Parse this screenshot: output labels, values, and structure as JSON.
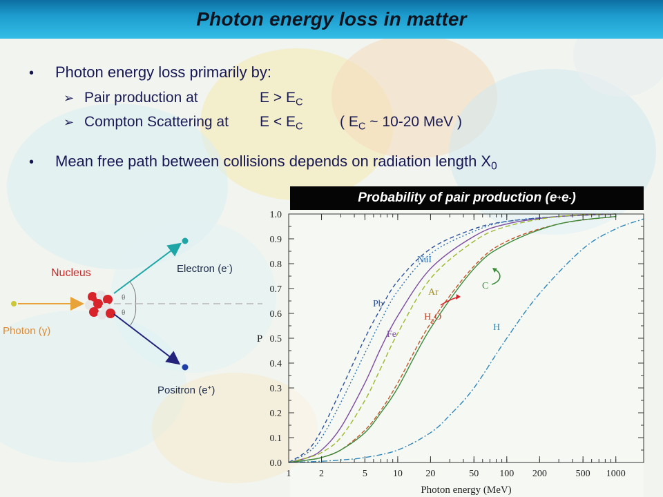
{
  "slide": {
    "title": "Photon energy loss in matter"
  },
  "bullets": {
    "b1": "Photon energy loss primarily by:",
    "s1_text": "Pair production at",
    "s1_cond_pre": "E > E",
    "s1_cond_sub": "C",
    "s2_text": "Compton Scattering at",
    "s2_cond_pre": "E < E",
    "s2_cond_sub": "C",
    "s2_note_pre": "( E",
    "s2_note_sub": "C",
    "s2_note_post": " ~ 10-20 MeV )",
    "b2_pre": "Mean free path between collisions depends on radiation length X",
    "b2_sub": "0"
  },
  "diagram": {
    "nucleus": "Nucleus",
    "photon": "Photon (γ)",
    "electron_pre": "Electron (e",
    "electron_sup": "-",
    "electron_post": ")",
    "positron_pre": "Positron (e",
    "positron_sup": "+",
    "positron_post": ")",
    "theta": "θ"
  },
  "colors": {
    "photon": "#e8a23a",
    "electron": "#1ea6a6",
    "positron": "#22227a",
    "title_gradient_top": "#0d6ea2",
    "bullet_text": "#161654"
  },
  "chart_data": {
    "type": "line",
    "title_pre": "Probability of pair production (e",
    "title_sup1": "+",
    "title_mid": "e",
    "title_sup2": "-",
    "title_post": ")",
    "xlabel": "Photon energy (MeV)",
    "ylabel": "P",
    "xscale": "log",
    "xlim": [
      1,
      1800
    ],
    "ylim": [
      0,
      1
    ],
    "xticks": [
      1,
      2,
      5,
      10,
      20,
      50,
      100,
      200,
      500,
      1000
    ],
    "xtick_labels": [
      "1",
      "2",
      "5",
      "10",
      "20",
      "50",
      "100",
      "200",
      "500",
      "1000"
    ],
    "yticks": [
      0.0,
      0.1,
      0.2,
      0.3,
      0.4,
      0.5,
      0.6,
      0.7,
      0.8,
      0.9,
      1.0
    ],
    "ytick_labels": [
      "0.0",
      "0.1",
      "0.2",
      "0.3",
      "0.4",
      "0.5",
      "0.6",
      "0.7",
      "0.8",
      "0.9",
      "1.0"
    ],
    "series": [
      {
        "name": "Pb",
        "color": "#2b4f9c",
        "dash": "6,4",
        "x": [
          1,
          1.5,
          2,
          3,
          5,
          7,
          10,
          20,
          50,
          100,
          300,
          1000
        ],
        "y": [
          0.0,
          0.05,
          0.13,
          0.29,
          0.5,
          0.62,
          0.73,
          0.86,
          0.94,
          0.97,
          0.99,
          1.0
        ]
      },
      {
        "name": "NaI",
        "color": "#2d6fb0",
        "dash": "2,3",
        "x": [
          1,
          1.5,
          2,
          3,
          5,
          7,
          10,
          20,
          50,
          100,
          300,
          1000
        ],
        "y": [
          0.0,
          0.04,
          0.1,
          0.24,
          0.44,
          0.57,
          0.69,
          0.84,
          0.93,
          0.97,
          0.99,
          1.0
        ]
      },
      {
        "name": "Fe",
        "color": "#7a4aa0",
        "dash": "",
        "x": [
          1,
          1.5,
          2,
          3,
          5,
          7,
          10,
          20,
          50,
          100,
          300,
          1000
        ],
        "y": [
          0.0,
          0.02,
          0.05,
          0.14,
          0.32,
          0.46,
          0.59,
          0.78,
          0.91,
          0.96,
          0.99,
          1.0
        ]
      },
      {
        "name": "Ar",
        "color": "#9ab82a",
        "dash": "7,4",
        "x": [
          1,
          1.5,
          2,
          3,
          5,
          7,
          10,
          20,
          50,
          100,
          300,
          1000
        ],
        "y": [
          0.0,
          0.02,
          0.04,
          0.1,
          0.25,
          0.38,
          0.52,
          0.74,
          0.89,
          0.95,
          0.99,
          1.0
        ]
      },
      {
        "name": "H2O",
        "color": "#c4572a",
        "dash": "6,3",
        "x": [
          1,
          1.5,
          2,
          3,
          5,
          7,
          10,
          20,
          50,
          100,
          300,
          1000
        ],
        "y": [
          0.0,
          0.01,
          0.02,
          0.05,
          0.13,
          0.21,
          0.32,
          0.56,
          0.79,
          0.89,
          0.96,
          0.99
        ]
      },
      {
        "name": "C",
        "color": "#3a8a3a",
        "dash": "",
        "x": [
          1,
          1.5,
          2,
          3,
          5,
          7,
          10,
          20,
          50,
          100,
          300,
          1000
        ],
        "y": [
          0.0,
          0.01,
          0.02,
          0.05,
          0.12,
          0.2,
          0.3,
          0.54,
          0.78,
          0.88,
          0.96,
          0.99
        ]
      },
      {
        "name": "H",
        "color": "#2f86b8",
        "dash": "8,3,2,3",
        "x": [
          1,
          2,
          3,
          5,
          10,
          20,
          30,
          50,
          100,
          200,
          500,
          1000,
          1800
        ],
        "y": [
          0.0,
          0.005,
          0.01,
          0.02,
          0.05,
          0.12,
          0.19,
          0.3,
          0.5,
          0.68,
          0.86,
          0.94,
          0.98
        ]
      }
    ],
    "labels": {
      "Pb": "Pb",
      "NaI": "NaI",
      "Fe": "Fe",
      "Ar": "Ar",
      "H2O_main": "H",
      "H2O_sub": "2",
      "H2O_end": "O",
      "C": "C",
      "H": "H"
    }
  }
}
